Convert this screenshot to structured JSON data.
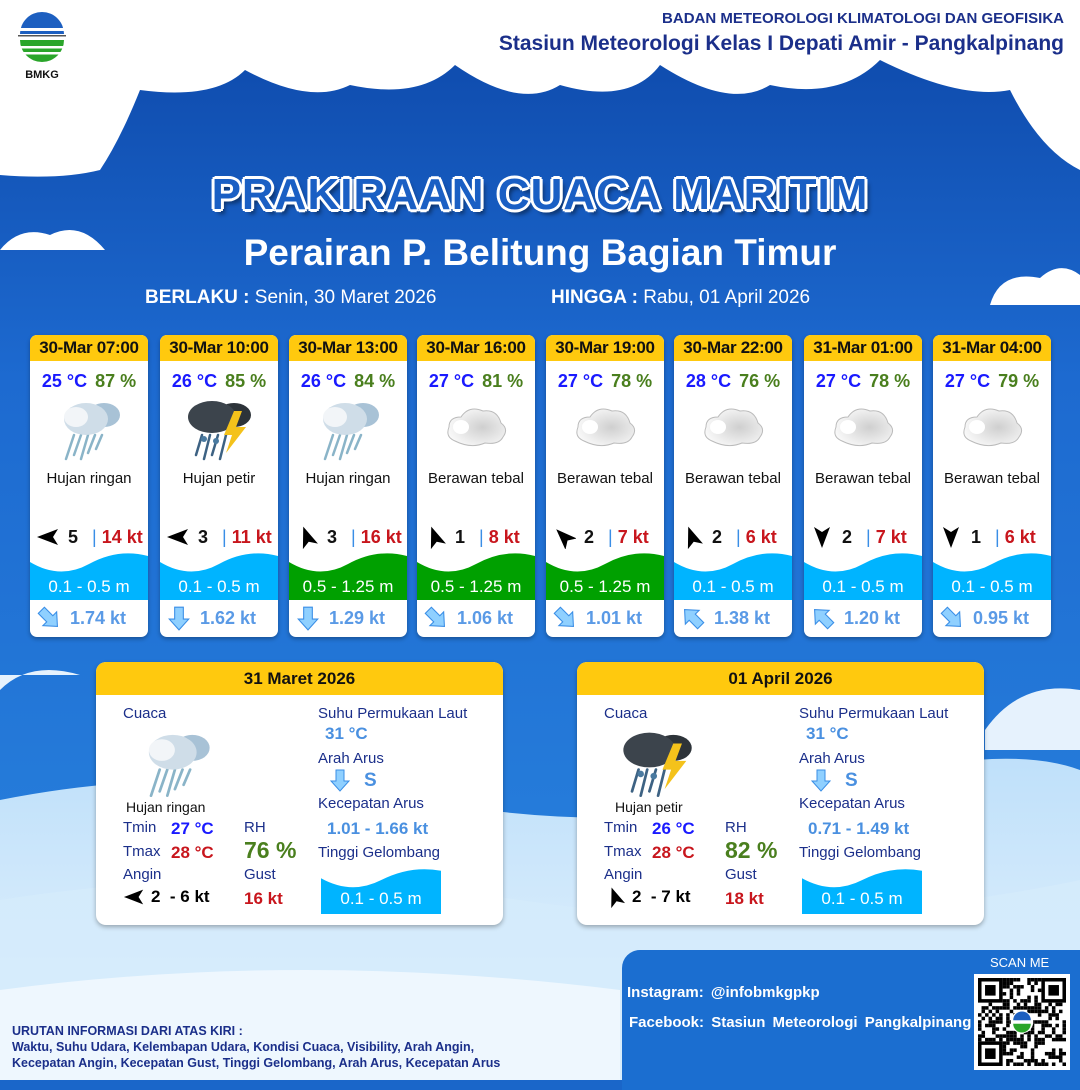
{
  "header": {
    "org": "BADAN METEOROLOGI KLIMATOLOGI DAN GEOFISIKA",
    "station": "Stasiun Meteorologi Kelas I Depati Amir - Pangkalpinang",
    "logo_text": "BMKG"
  },
  "title": "PRAKIRAAN CUACA MARITIM",
  "subtitle": "Perairan P. Belitung Bagian Timur",
  "validity": {
    "from_label": "BERLAKU :",
    "from": "Senin, 30 Maret 2026",
    "to_label": "HINGGA :",
    "to": "Rabu, 01 April 2026"
  },
  "colors": {
    "wave_low": "#00b4ff",
    "wave_moderate": "#00a000",
    "header_yellow": "#ffc90e",
    "background": "#1a66c9"
  },
  "forecasts": [
    {
      "time": "30-Mar 07:00",
      "temp": "25 °C",
      "rh": "87 %",
      "icon": "light-rain-icon",
      "weather": "Hujan ringan",
      "wind_dir_deg": 270,
      "wind": "5",
      "gust": "14 kt",
      "wave": "0.1 - 0.5 m",
      "wave_level": "low",
      "current_dir_deg": 135,
      "current": "1.74 kt"
    },
    {
      "time": "30-Mar 10:00",
      "temp": "26 °C",
      "rh": "85 %",
      "icon": "thunderstorm-icon",
      "weather": "Hujan petir",
      "wind_dir_deg": 270,
      "wind": "3",
      "gust": "11 kt",
      "wave": "0.1 - 0.5 m",
      "wave_level": "low",
      "current_dir_deg": 180,
      "current": "1.62 kt"
    },
    {
      "time": "30-Mar 13:00",
      "temp": "26 °C",
      "rh": "84 %",
      "icon": "light-rain-icon",
      "weather": "Hujan ringan",
      "wind_dir_deg": 340,
      "wind": "3",
      "gust": "16 kt",
      "wave": "0.5 - 1.25 m",
      "wave_level": "moderate",
      "current_dir_deg": 180,
      "current": "1.29 kt"
    },
    {
      "time": "30-Mar 16:00",
      "temp": "27 °C",
      "rh": "81 %",
      "icon": "cloud-icon",
      "weather": "Berawan tebal",
      "wind_dir_deg": 340,
      "wind": "1",
      "gust": "8 kt",
      "wave": "0.5 - 1.25 m",
      "wave_level": "moderate",
      "current_dir_deg": 135,
      "current": "1.06 kt"
    },
    {
      "time": "30-Mar 19:00",
      "temp": "27 °C",
      "rh": "78 %",
      "icon": "cloud-icon",
      "weather": "Berawan tebal",
      "wind_dir_deg": 315,
      "wind": "2",
      "gust": "7 kt",
      "wave": "0.5 - 1.25 m",
      "wave_level": "moderate",
      "current_dir_deg": 135,
      "current": "1.01 kt"
    },
    {
      "time": "30-Mar 22:00",
      "temp": "28 °C",
      "rh": "76 %",
      "icon": "cloud-icon",
      "weather": "Berawan tebal",
      "wind_dir_deg": 340,
      "wind": "2",
      "gust": "6 kt",
      "wave": "0.1 - 0.5 m",
      "wave_level": "low",
      "current_dir_deg": 315,
      "current": "1.38 kt"
    },
    {
      "time": "31-Mar 01:00",
      "temp": "27 °C",
      "rh": "78 %",
      "icon": "cloud-icon",
      "weather": "Berawan tebal",
      "wind_dir_deg": 180,
      "wind": "2",
      "gust": "7 kt",
      "wave": "0.1 - 0.5 m",
      "wave_level": "low",
      "current_dir_deg": 315,
      "current": "1.20 kt"
    },
    {
      "time": "31-Mar 04:00",
      "temp": "27 °C",
      "rh": "79 %",
      "icon": "cloud-icon",
      "weather": "Berawan tebal",
      "wind_dir_deg": 180,
      "wind": "1",
      "gust": "6 kt",
      "wave": "0.1 - 0.5 m",
      "wave_level": "low",
      "current_dir_deg": 135,
      "current": "0.95 kt"
    }
  ],
  "daily": [
    {
      "date": "31 Maret 2026",
      "weather_label": "Cuaca",
      "icon": "light-rain-icon",
      "weather": "Hujan ringan",
      "tmin_label": "Tmin",
      "tmin": "27 °C",
      "tmax_label": "Tmax",
      "tmax": "28 °C",
      "rh_label": "RH",
      "rh": "76 %",
      "wind_label": "Angin",
      "wind_dir_deg": 270,
      "wind": "2  - 6 kt",
      "gust_label": "Gust",
      "gust": "16 kt",
      "sst_label": "Suhu Permukaan Laut",
      "sst": "31 °C",
      "current_dir_label": "Arah Arus",
      "current_dir_deg": 180,
      "current_dir": "S",
      "current_speed_label": "Kecepatan Arus",
      "current_speed": "1.01 - 1.66 kt",
      "wave_label": "Tinggi Gelombang",
      "wave": "0.1 - 0.5 m"
    },
    {
      "date": "01 April 2026",
      "weather_label": "Cuaca",
      "icon": "thunderstorm-icon",
      "weather": "Hujan petir",
      "tmin_label": "Tmin",
      "tmin": "26 °C",
      "tmax_label": "Tmax",
      "tmax": "28 °C",
      "rh_label": "RH",
      "rh": "82 %",
      "wind_label": "Angin",
      "wind_dir_deg": 340,
      "wind": "2  - 7 kt",
      "gust_label": "Gust",
      "gust": "18 kt",
      "sst_label": "Suhu Permukaan Laut",
      "sst": "31 °C",
      "current_dir_label": "Arah Arus",
      "current_dir_deg": 180,
      "current_dir": "S",
      "current_speed_label": "Kecepatan Arus",
      "current_speed": "0.71 - 1.49 kt",
      "wave_label": "Tinggi Gelombang",
      "wave": "0.1 - 0.5 m"
    }
  ],
  "footer": {
    "instagram_label": "Instagram:",
    "instagram": "@infobmkgpkp",
    "facebook_label": "Facebook:",
    "facebook": "Stasiun  Meteorologi  Pangkalpinang",
    "scan": "SCAN ME",
    "note_title": "URUTAN INFORMASI DARI ATAS KIRI :",
    "note_line1": "Waktu, Suhu Udara, Kelembapan Udara, Kondisi Cuaca, Visibility, Arah Angin,",
    "note_line2": "Kecepatan Angin, Kecepatan Gust, Tinggi Gelombang, Arah Arus, Kecepatan Arus"
  }
}
